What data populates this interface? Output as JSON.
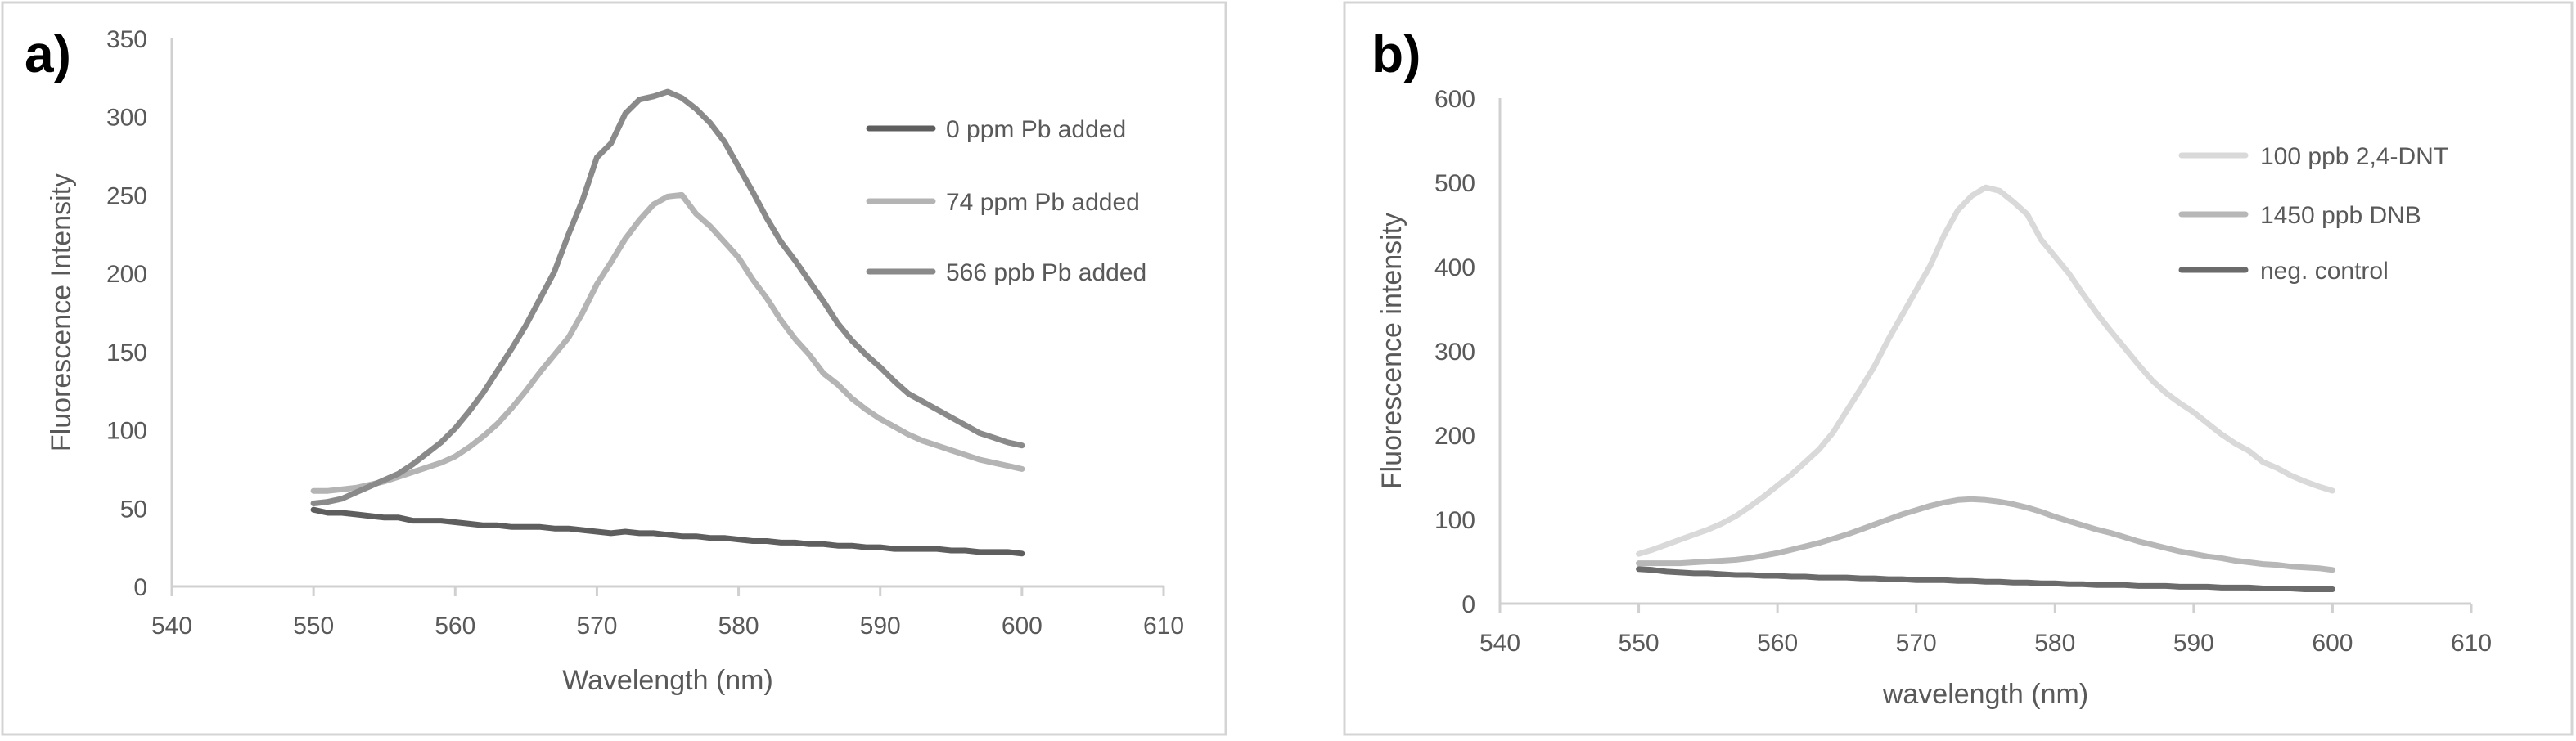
{
  "chart_data": [
    {
      "type": "line",
      "panel_label": "a)",
      "title": "",
      "xlabel": "Wavelength (nm)",
      "ylabel": "Fluorescence Intensity",
      "xlim": [
        540,
        610
      ],
      "ylim": [
        0,
        350
      ],
      "xticks": [
        540,
        550,
        560,
        570,
        580,
        590,
        600,
        610
      ],
      "yticks": [
        0,
        50,
        100,
        150,
        200,
        250,
        300,
        350
      ],
      "grid": false,
      "legend_position": "top-right",
      "x": [
        550,
        551,
        552,
        553,
        554,
        555,
        556,
        557,
        558,
        559,
        560,
        561,
        562,
        563,
        564,
        565,
        566,
        567,
        568,
        569,
        570,
        571,
        572,
        573,
        574,
        575,
        576,
        577,
        578,
        579,
        580,
        581,
        582,
        583,
        584,
        585,
        586,
        587,
        588,
        589,
        590,
        591,
        592,
        593,
        594,
        595,
        596,
        597,
        598,
        599,
        600
      ],
      "series": [
        {
          "name": "0 ppm Pb added",
          "color": "#5e5e5e",
          "values": [
            49,
            47,
            47,
            46,
            45,
            44,
            44,
            42,
            42,
            42,
            41,
            40,
            39,
            39,
            38,
            38,
            38,
            37,
            37,
            36,
            35,
            34,
            35,
            34,
            34,
            33,
            32,
            32,
            31,
            31,
            30,
            29,
            29,
            28,
            28,
            27,
            27,
            26,
            26,
            25,
            25,
            24,
            24,
            24,
            24,
            23,
            23,
            22,
            22,
            22,
            21
          ]
        },
        {
          "name": "74 ppm Pb added",
          "color": "#b4b4b4",
          "values": [
            61,
            61,
            62,
            63,
            65,
            67,
            70,
            73,
            76,
            79,
            83,
            89,
            96,
            104,
            114,
            125,
            137,
            148,
            159,
            175,
            193,
            207,
            222,
            234,
            244,
            249,
            250,
            238,
            230,
            220,
            210,
            196,
            184,
            170,
            158,
            148,
            136,
            129,
            120,
            113,
            107,
            102,
            97,
            93,
            90,
            87,
            84,
            81,
            79,
            77,
            75
          ]
        },
        {
          "name": "566 ppb Pb added",
          "color": "#8a8a8a",
          "values": [
            53,
            54,
            56,
            60,
            64,
            68,
            72,
            78,
            85,
            92,
            101,
            112,
            124,
            138,
            152,
            167,
            184,
            201,
            225,
            247,
            274,
            283,
            302,
            311,
            313,
            316,
            312,
            305,
            296,
            284,
            268,
            252,
            235,
            220,
            208,
            195,
            182,
            168,
            157,
            148,
            140,
            131,
            123,
            118,
            113,
            108,
            103,
            98,
            95,
            92,
            90
          ]
        }
      ]
    },
    {
      "type": "line",
      "panel_label": "b)",
      "title": "",
      "xlabel": "wavelength (nm)",
      "ylabel": "Fluorescence intensity",
      "xlim": [
        540,
        610
      ],
      "ylim": [
        0,
        600
      ],
      "xticks": [
        540,
        550,
        560,
        570,
        580,
        590,
        600,
        610
      ],
      "yticks": [
        0,
        100,
        200,
        300,
        400,
        500,
        600
      ],
      "grid": false,
      "legend_position": "top-right",
      "x": [
        550,
        551,
        552,
        553,
        554,
        555,
        556,
        557,
        558,
        559,
        560,
        561,
        562,
        563,
        564,
        565,
        566,
        567,
        568,
        569,
        570,
        571,
        572,
        573,
        574,
        575,
        576,
        577,
        578,
        579,
        580,
        581,
        582,
        583,
        584,
        585,
        586,
        587,
        588,
        589,
        590,
        591,
        592,
        593,
        594,
        595,
        596,
        597,
        598,
        599,
        600
      ],
      "series": [
        {
          "name": "100 ppb 2,4-DNT",
          "color": "#d9d9d9",
          "values": [
            59,
            64,
            70,
            76,
            82,
            88,
            95,
            104,
            115,
            127,
            140,
            153,
            168,
            183,
            203,
            229,
            255,
            282,
            314,
            343,
            372,
            401,
            437,
            467,
            484,
            494,
            490,
            477,
            462,
            432,
            412,
            392,
            368,
            345,
            324,
            304,
            284,
            265,
            250,
            238,
            227,
            214,
            201,
            190,
            181,
            168,
            161,
            152,
            145,
            139,
            134
          ]
        },
        {
          "name": "1450 ppb DNB",
          "color": "#b7b7b7",
          "values": [
            48,
            48,
            48,
            48,
            49,
            50,
            51,
            52,
            54,
            57,
            60,
            64,
            68,
            72,
            77,
            82,
            88,
            94,
            100,
            106,
            111,
            116,
            120,
            123,
            124,
            123,
            121,
            118,
            114,
            109,
            103,
            98,
            93,
            88,
            84,
            79,
            74,
            70,
            66,
            62,
            59,
            56,
            54,
            51,
            49,
            47,
            46,
            44,
            43,
            42,
            40
          ]
        },
        {
          "name": "neg. control",
          "color": "#6b6b6b",
          "values": [
            41,
            40,
            38,
            37,
            36,
            36,
            35,
            34,
            34,
            33,
            33,
            32,
            32,
            31,
            31,
            31,
            30,
            30,
            29,
            29,
            28,
            28,
            28,
            27,
            27,
            26,
            26,
            25,
            25,
            24,
            24,
            23,
            23,
            22,
            22,
            22,
            21,
            21,
            21,
            20,
            20,
            20,
            19,
            19,
            19,
            18,
            18,
            18,
            17,
            17,
            17
          ]
        }
      ]
    }
  ]
}
